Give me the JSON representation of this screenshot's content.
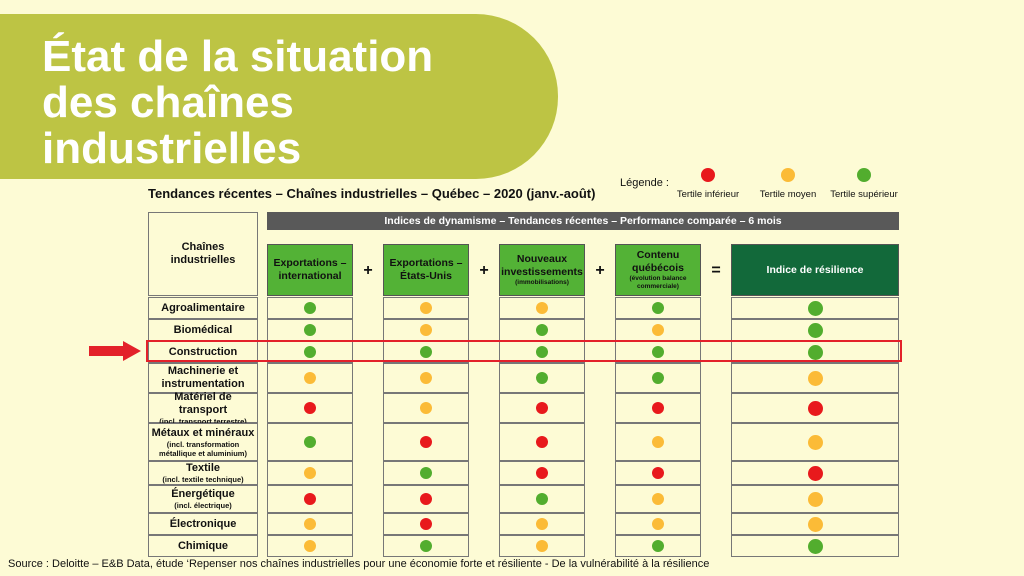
{
  "slide": {
    "title": "État de la situation\ndes chaînes\nindustrielles",
    "subtitle": "Tendances récentes – Chaînes industrielles – Québec – 2020 (janv.-août)",
    "source": "Source : Deloitte – E&B Data, étude ‘Repenser nos chaînes industrielles pour une économie forte et résiliente - De la vulnérabilité à la résilience"
  },
  "legend": {
    "title": "Légende :",
    "items": [
      {
        "label": "Tertile inférieur",
        "color": "red"
      },
      {
        "label": "Tertile moyen",
        "color": "orange"
      },
      {
        "label": "Tertile supérieur",
        "color": "green"
      }
    ]
  },
  "colors": {
    "red": "#e8191c",
    "orange": "#fbbb37",
    "green": "#52ad2e",
    "banner": "#bdc444",
    "header_green": "#53b236",
    "header_dark": "#12693a",
    "highlight": "#e3212a"
  },
  "table": {
    "header_bar": "Indices de dynamisme – Tendances récentes – Performance comparée – 6 mois",
    "row_header": "Chaînes\nindustrielles",
    "operators": [
      "+",
      "+",
      "+",
      "="
    ],
    "columns": [
      {
        "label": "Exportations –\ninternational",
        "sub": ""
      },
      {
        "label": "Exportations –\nÉtats-Unis",
        "sub": ""
      },
      {
        "label": "Nouveaux\ninvestissements",
        "sub": "(immobilisations)"
      },
      {
        "label": "Contenu\nquébécois",
        "sub": "(évolution balance\ncommerciale)"
      },
      {
        "label": "Indice de résilience",
        "sub": ""
      }
    ],
    "highlighted_row": "Construction",
    "rows": [
      {
        "label": "Agroalimentaire",
        "sub": "",
        "values": [
          "green",
          "orange",
          "orange",
          "green",
          "green"
        ]
      },
      {
        "label": "Biomédical",
        "sub": "",
        "values": [
          "green",
          "orange",
          "green",
          "orange",
          "green"
        ]
      },
      {
        "label": "Construction",
        "sub": "",
        "values": [
          "green",
          "green",
          "green",
          "green",
          "green"
        ]
      },
      {
        "label": "Machinerie et\ninstrumentation",
        "sub": "",
        "values": [
          "orange",
          "orange",
          "green",
          "green",
          "orange"
        ]
      },
      {
        "label": "Matériel de transport",
        "sub": "(incl. transport terrestre)",
        "values": [
          "red",
          "orange",
          "red",
          "red",
          "red"
        ]
      },
      {
        "label": "Métaux et minéraux",
        "sub": "(incl. transformation\nmétallique et aluminium)",
        "values": [
          "green",
          "red",
          "red",
          "orange",
          "orange"
        ]
      },
      {
        "label": "Textile",
        "sub": "(incl. textile technique)",
        "values": [
          "orange",
          "green",
          "red",
          "red",
          "red"
        ]
      },
      {
        "label": "Énergétique",
        "sub": "(incl. électrique)",
        "values": [
          "red",
          "red",
          "green",
          "orange",
          "orange"
        ]
      },
      {
        "label": "Électronique",
        "sub": "",
        "values": [
          "orange",
          "red",
          "orange",
          "orange",
          "orange"
        ]
      },
      {
        "label": "Chimique",
        "sub": "",
        "values": [
          "orange",
          "green",
          "orange",
          "green",
          "green"
        ]
      }
    ]
  }
}
